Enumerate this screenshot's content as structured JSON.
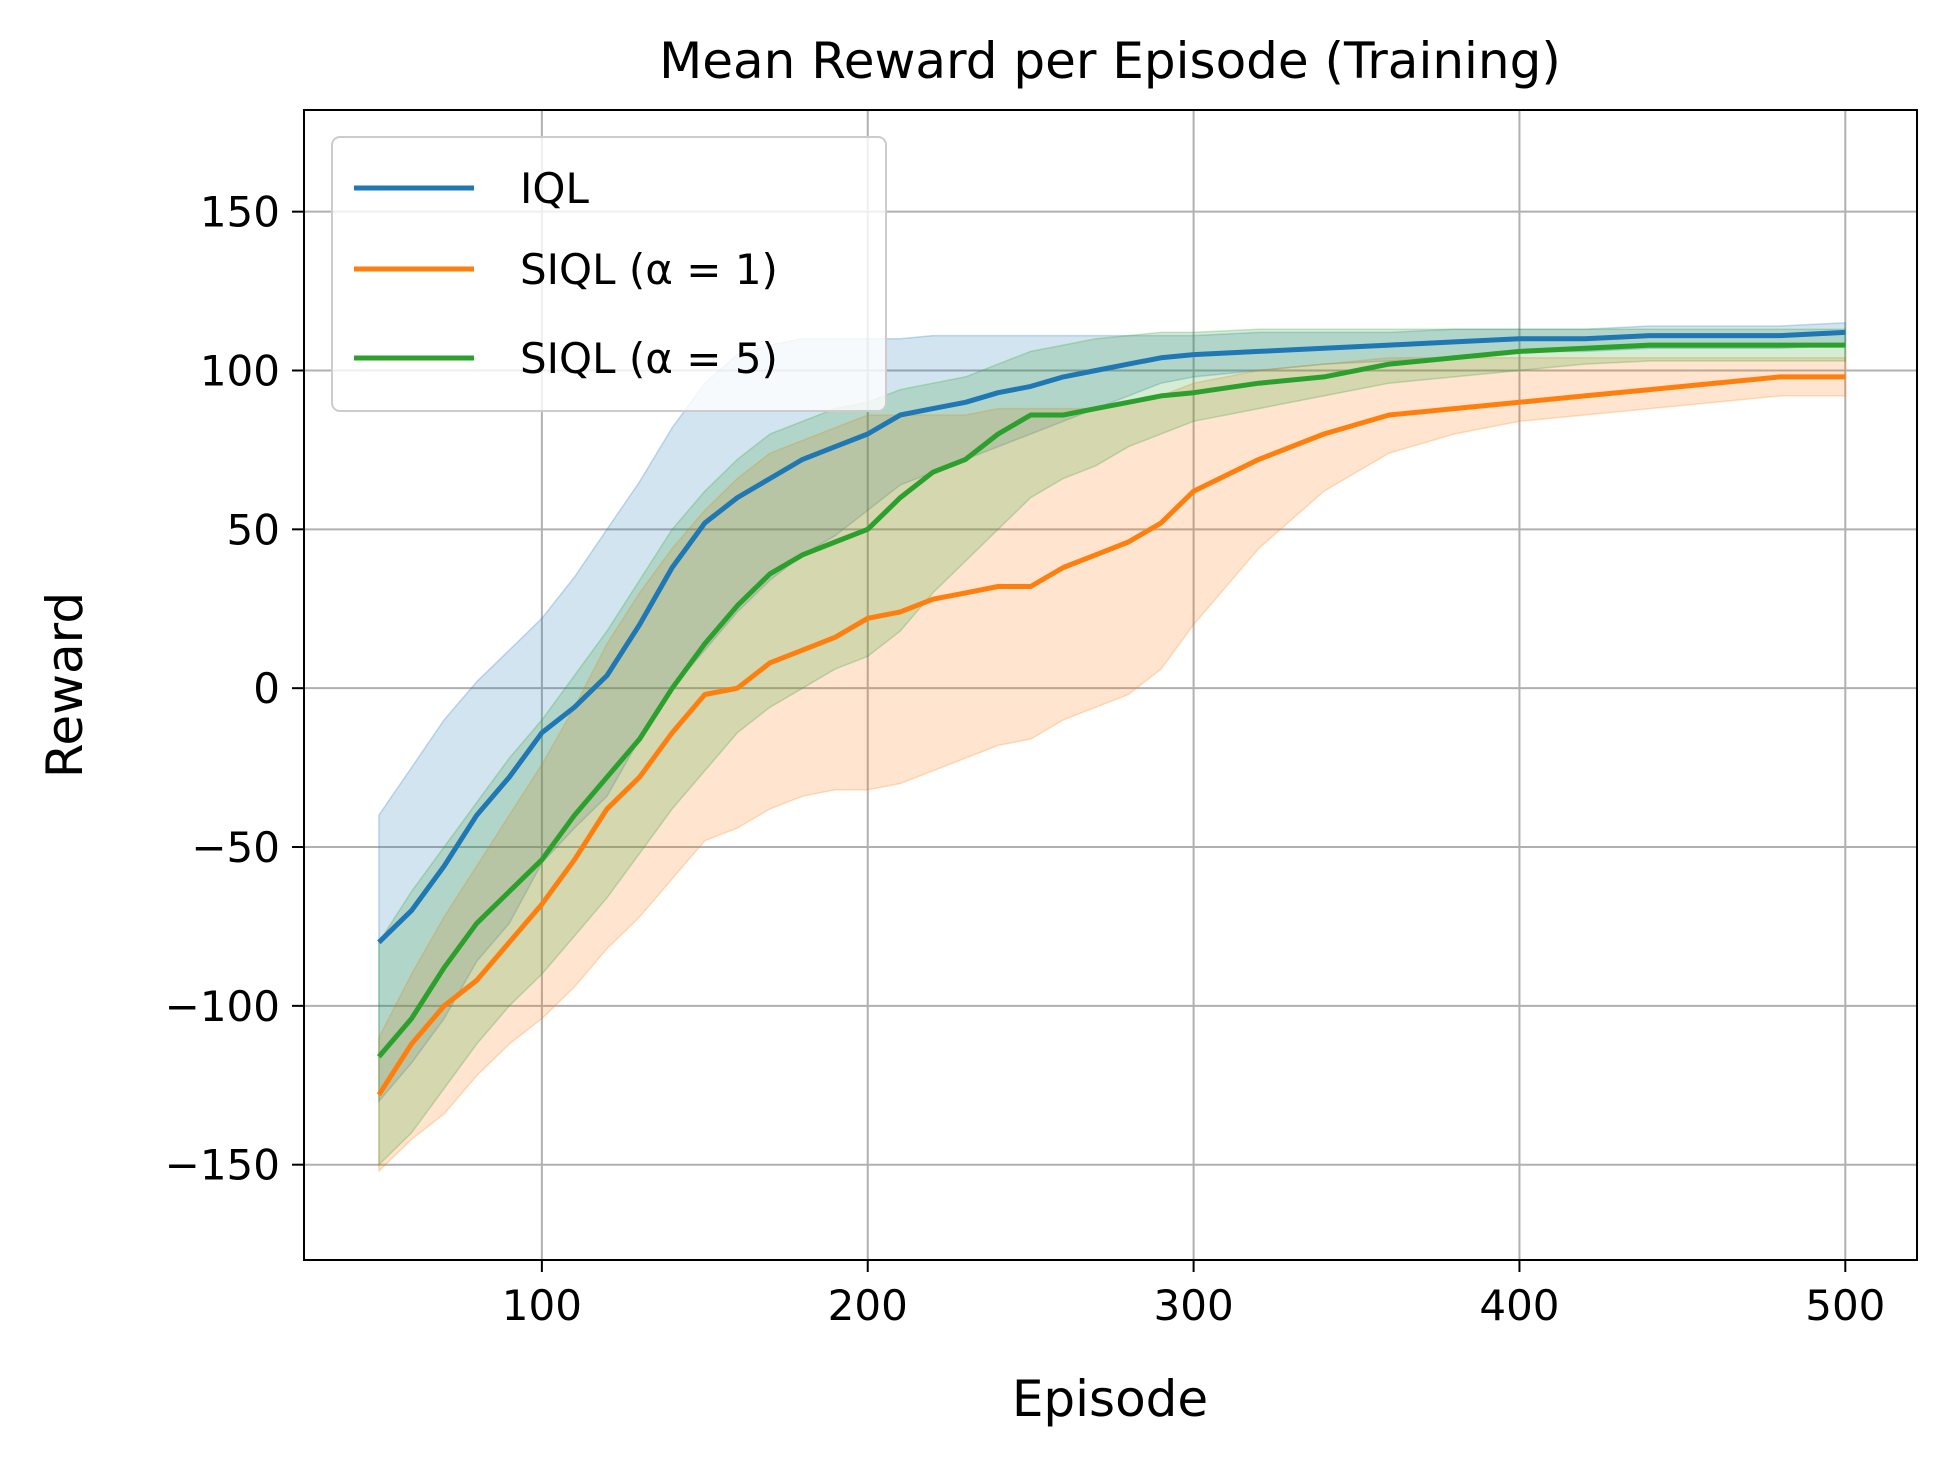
{
  "chart_data": {
    "type": "line",
    "title": "Mean Reward per Episode (Training)",
    "xlabel": "Episode",
    "ylabel": "Reward",
    "xlim": [
      27,
      522
    ],
    "ylim": [
      -180,
      182
    ],
    "xticks": [
      100,
      200,
      300,
      400,
      500
    ],
    "xtick_labels": [
      "100",
      "200",
      "300",
      "400",
      "500"
    ],
    "yticks": [
      -150,
      -100,
      -50,
      0,
      50,
      100,
      150
    ],
    "ytick_labels": [
      "−150",
      "−100",
      "−50",
      "0",
      "50",
      "100",
      "150"
    ],
    "grid": true,
    "legend_position": "upper-left",
    "series": [
      {
        "name": "IQL",
        "color": "#1f77b4",
        "x": [
          50,
          60,
          70,
          80,
          90,
          100,
          110,
          120,
          130,
          140,
          150,
          160,
          170,
          180,
          190,
          200,
          210,
          220,
          230,
          240,
          250,
          260,
          270,
          280,
          290,
          300,
          320,
          340,
          360,
          380,
          400,
          420,
          440,
          460,
          480,
          500
        ],
        "mean": [
          -80,
          -70,
          -56,
          -40,
          -28,
          -14,
          -6,
          4,
          20,
          38,
          52,
          60,
          66,
          72,
          76,
          80,
          86,
          88,
          90,
          93,
          95,
          98,
          100,
          102,
          104,
          105,
          106,
          107,
          108,
          109,
          110,
          110,
          111,
          111,
          111,
          112
        ],
        "upper": [
          -40,
          -25,
          -10,
          2,
          12,
          22,
          35,
          50,
          65,
          82,
          96,
          105,
          108,
          110,
          110,
          110,
          110,
          111,
          111,
          111,
          111,
          111,
          111,
          111,
          111,
          111,
          112,
          112,
          112,
          113,
          113,
          113,
          114,
          114,
          114,
          115
        ],
        "lower": [
          -130,
          -118,
          -104,
          -86,
          -74,
          -55,
          -44,
          -34,
          -16,
          0,
          12,
          24,
          34,
          42,
          48,
          56,
          64,
          68,
          72,
          76,
          80,
          84,
          88,
          92,
          96,
          98,
          100,
          102,
          103,
          104,
          106,
          106,
          107,
          107,
          107,
          108
        ]
      },
      {
        "name": "SIQL (α = 1)",
        "color": "#ff7f0e",
        "x": [
          50,
          60,
          70,
          80,
          90,
          100,
          110,
          120,
          130,
          140,
          150,
          160,
          170,
          180,
          190,
          200,
          210,
          220,
          230,
          240,
          250,
          260,
          270,
          280,
          290,
          300,
          320,
          340,
          360,
          380,
          400,
          420,
          440,
          460,
          480,
          500
        ],
        "mean": [
          -128,
          -112,
          -100,
          -92,
          -80,
          -68,
          -54,
          -38,
          -28,
          -14,
          -2,
          0,
          8,
          12,
          16,
          22,
          24,
          28,
          30,
          32,
          32,
          38,
          42,
          46,
          52,
          62,
          72,
          80,
          86,
          88,
          90,
          92,
          94,
          96,
          98,
          98
        ],
        "upper": [
          -110,
          -90,
          -72,
          -56,
          -40,
          -24,
          -6,
          14,
          30,
          44,
          56,
          66,
          74,
          78,
          82,
          86,
          86,
          86,
          86,
          88,
          88,
          88,
          88,
          90,
          92,
          96,
          100,
          102,
          104,
          104,
          104,
          104,
          104,
          104,
          104,
          104
        ],
        "lower": [
          -152,
          -142,
          -134,
          -122,
          -112,
          -104,
          -94,
          -82,
          -72,
          -60,
          -48,
          -44,
          -38,
          -34,
          -32,
          -32,
          -30,
          -26,
          -22,
          -18,
          -16,
          -10,
          -6,
          -2,
          6,
          20,
          44,
          62,
          74,
          80,
          84,
          86,
          88,
          90,
          92,
          92
        ]
      },
      {
        "name": "SIQL (α = 5)",
        "color": "#2ca02c",
        "x": [
          50,
          60,
          70,
          80,
          90,
          100,
          110,
          120,
          130,
          140,
          150,
          160,
          170,
          180,
          190,
          200,
          210,
          220,
          230,
          240,
          250,
          260,
          270,
          280,
          290,
          300,
          320,
          340,
          360,
          380,
          400,
          420,
          440,
          460,
          480,
          500
        ],
        "mean": [
          -116,
          -104,
          -88,
          -74,
          -64,
          -54,
          -40,
          -28,
          -16,
          0,
          14,
          26,
          36,
          42,
          46,
          50,
          60,
          68,
          72,
          80,
          86,
          86,
          88,
          90,
          92,
          93,
          96,
          98,
          102,
          104,
          106,
          107,
          108,
          108,
          108,
          108
        ],
        "upper": [
          -80,
          -64,
          -50,
          -36,
          -22,
          -10,
          4,
          18,
          34,
          50,
          62,
          72,
          80,
          84,
          88,
          90,
          94,
          96,
          98,
          102,
          106,
          108,
          110,
          111,
          112,
          112,
          113,
          113,
          113,
          113,
          113,
          113,
          113,
          113,
          113,
          113
        ],
        "lower": [
          -150,
          -140,
          -126,
          -112,
          -100,
          -90,
          -78,
          -66,
          -52,
          -38,
          -26,
          -14,
          -6,
          0,
          6,
          10,
          18,
          30,
          40,
          50,
          60,
          66,
          70,
          76,
          80,
          84,
          88,
          92,
          96,
          98,
          100,
          102,
          103,
          103,
          103,
          103
        ]
      }
    ]
  }
}
